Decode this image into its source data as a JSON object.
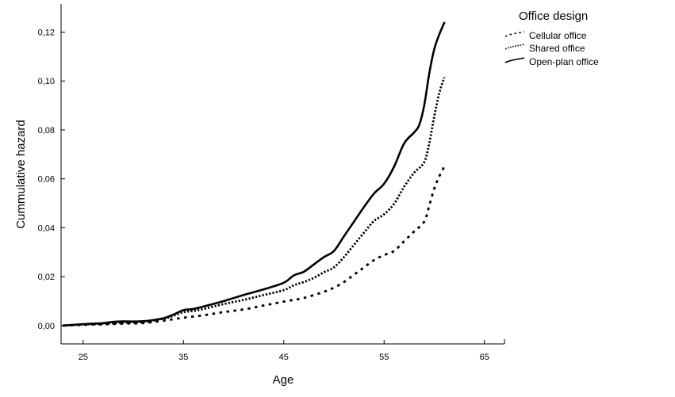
{
  "chart_data": {
    "type": "line",
    "xlabel": "Age",
    "ylabel": "Cummulative hazard",
    "xlim": [
      22.8,
      67
    ],
    "ylim": [
      -0.0075,
      0.1315
    ],
    "xticks": [
      25,
      35,
      45,
      55,
      65
    ],
    "xtick_labels": [
      "25",
      "35",
      "45",
      "55",
      "65"
    ],
    "yticks": [
      0,
      0.02,
      0.04,
      0.06,
      0.08,
      0.1,
      0.12
    ],
    "ytick_labels": [
      "0,00",
      "0,02",
      "0,04",
      "0,06",
      "0,08",
      "0,10",
      "0,12"
    ],
    "grid": false,
    "legend": {
      "title": "Office design",
      "placement": "top-right"
    },
    "series": [
      {
        "name": "Cellular office",
        "style": "dashed",
        "points": [
          [
            23,
            0
          ],
          [
            25,
            0.0003
          ],
          [
            27,
            0.0005
          ],
          [
            29,
            0.0008
          ],
          [
            31,
            0.001
          ],
          [
            33,
            0.002
          ],
          [
            35,
            0.0032
          ],
          [
            37,
            0.0042
          ],
          [
            39,
            0.0055
          ],
          [
            41,
            0.0066
          ],
          [
            43,
            0.0082
          ],
          [
            45,
            0.0098
          ],
          [
            47,
            0.0113
          ],
          [
            49,
            0.0138
          ],
          [
            50,
            0.0155
          ],
          [
            51,
            0.0178
          ],
          [
            52,
            0.0208
          ],
          [
            53,
            0.0238
          ],
          [
            54,
            0.0268
          ],
          [
            55,
            0.0288
          ],
          [
            56,
            0.0305
          ],
          [
            57,
            0.0345
          ],
          [
            58,
            0.0385
          ],
          [
            59,
            0.0425
          ],
          [
            59.5,
            0.049
          ],
          [
            60,
            0.056
          ],
          [
            60.5,
            0.061
          ],
          [
            61,
            0.065
          ]
        ]
      },
      {
        "name": "Shared office",
        "style": "dotted",
        "points": [
          [
            23,
            0
          ],
          [
            25,
            0.0004
          ],
          [
            27,
            0.0008
          ],
          [
            29,
            0.0012
          ],
          [
            31,
            0.0015
          ],
          [
            33,
            0.0028
          ],
          [
            34,
            0.004
          ],
          [
            35,
            0.0055
          ],
          [
            36,
            0.006
          ],
          [
            37,
            0.0068
          ],
          [
            39,
            0.0088
          ],
          [
            41,
            0.0105
          ],
          [
            43,
            0.0125
          ],
          [
            45,
            0.0145
          ],
          [
            46,
            0.0165
          ],
          [
            47,
            0.0178
          ],
          [
            48,
            0.0195
          ],
          [
            49,
            0.0218
          ],
          [
            50,
            0.0238
          ],
          [
            51,
            0.028
          ],
          [
            52,
            0.033
          ],
          [
            53,
            0.038
          ],
          [
            54,
            0.0428
          ],
          [
            55,
            0.0455
          ],
          [
            56,
            0.0498
          ],
          [
            57,
            0.0568
          ],
          [
            58,
            0.0625
          ],
          [
            59,
            0.0668
          ],
          [
            59.5,
            0.0745
          ],
          [
            60,
            0.0855
          ],
          [
            60.5,
            0.095
          ],
          [
            61,
            0.1015
          ]
        ]
      },
      {
        "name": "Open-plan office",
        "style": "solid",
        "points": [
          [
            23,
            0
          ],
          [
            25,
            0.0006
          ],
          [
            27,
            0.001
          ],
          [
            28,
            0.0015
          ],
          [
            29,
            0.0017
          ],
          [
            31,
            0.0018
          ],
          [
            33,
            0.003
          ],
          [
            34,
            0.0045
          ],
          [
            35,
            0.0063
          ],
          [
            36,
            0.0068
          ],
          [
            37,
            0.0078
          ],
          [
            39,
            0.01
          ],
          [
            41,
            0.0125
          ],
          [
            43,
            0.0148
          ],
          [
            45,
            0.0175
          ],
          [
            46,
            0.0205
          ],
          [
            47,
            0.022
          ],
          [
            48,
            0.025
          ],
          [
            49,
            0.028
          ],
          [
            50,
            0.0305
          ],
          [
            51,
            0.0365
          ],
          [
            52,
            0.0425
          ],
          [
            53,
            0.0485
          ],
          [
            54,
            0.054
          ],
          [
            55,
            0.058
          ],
          [
            56,
            0.065
          ],
          [
            57,
            0.0745
          ],
          [
            58,
            0.079
          ],
          [
            58.5,
            0.082
          ],
          [
            59,
            0.09
          ],
          [
            59.5,
            0.103
          ],
          [
            60,
            0.113
          ],
          [
            60.5,
            0.119
          ],
          [
            61,
            0.1238
          ]
        ]
      }
    ]
  }
}
